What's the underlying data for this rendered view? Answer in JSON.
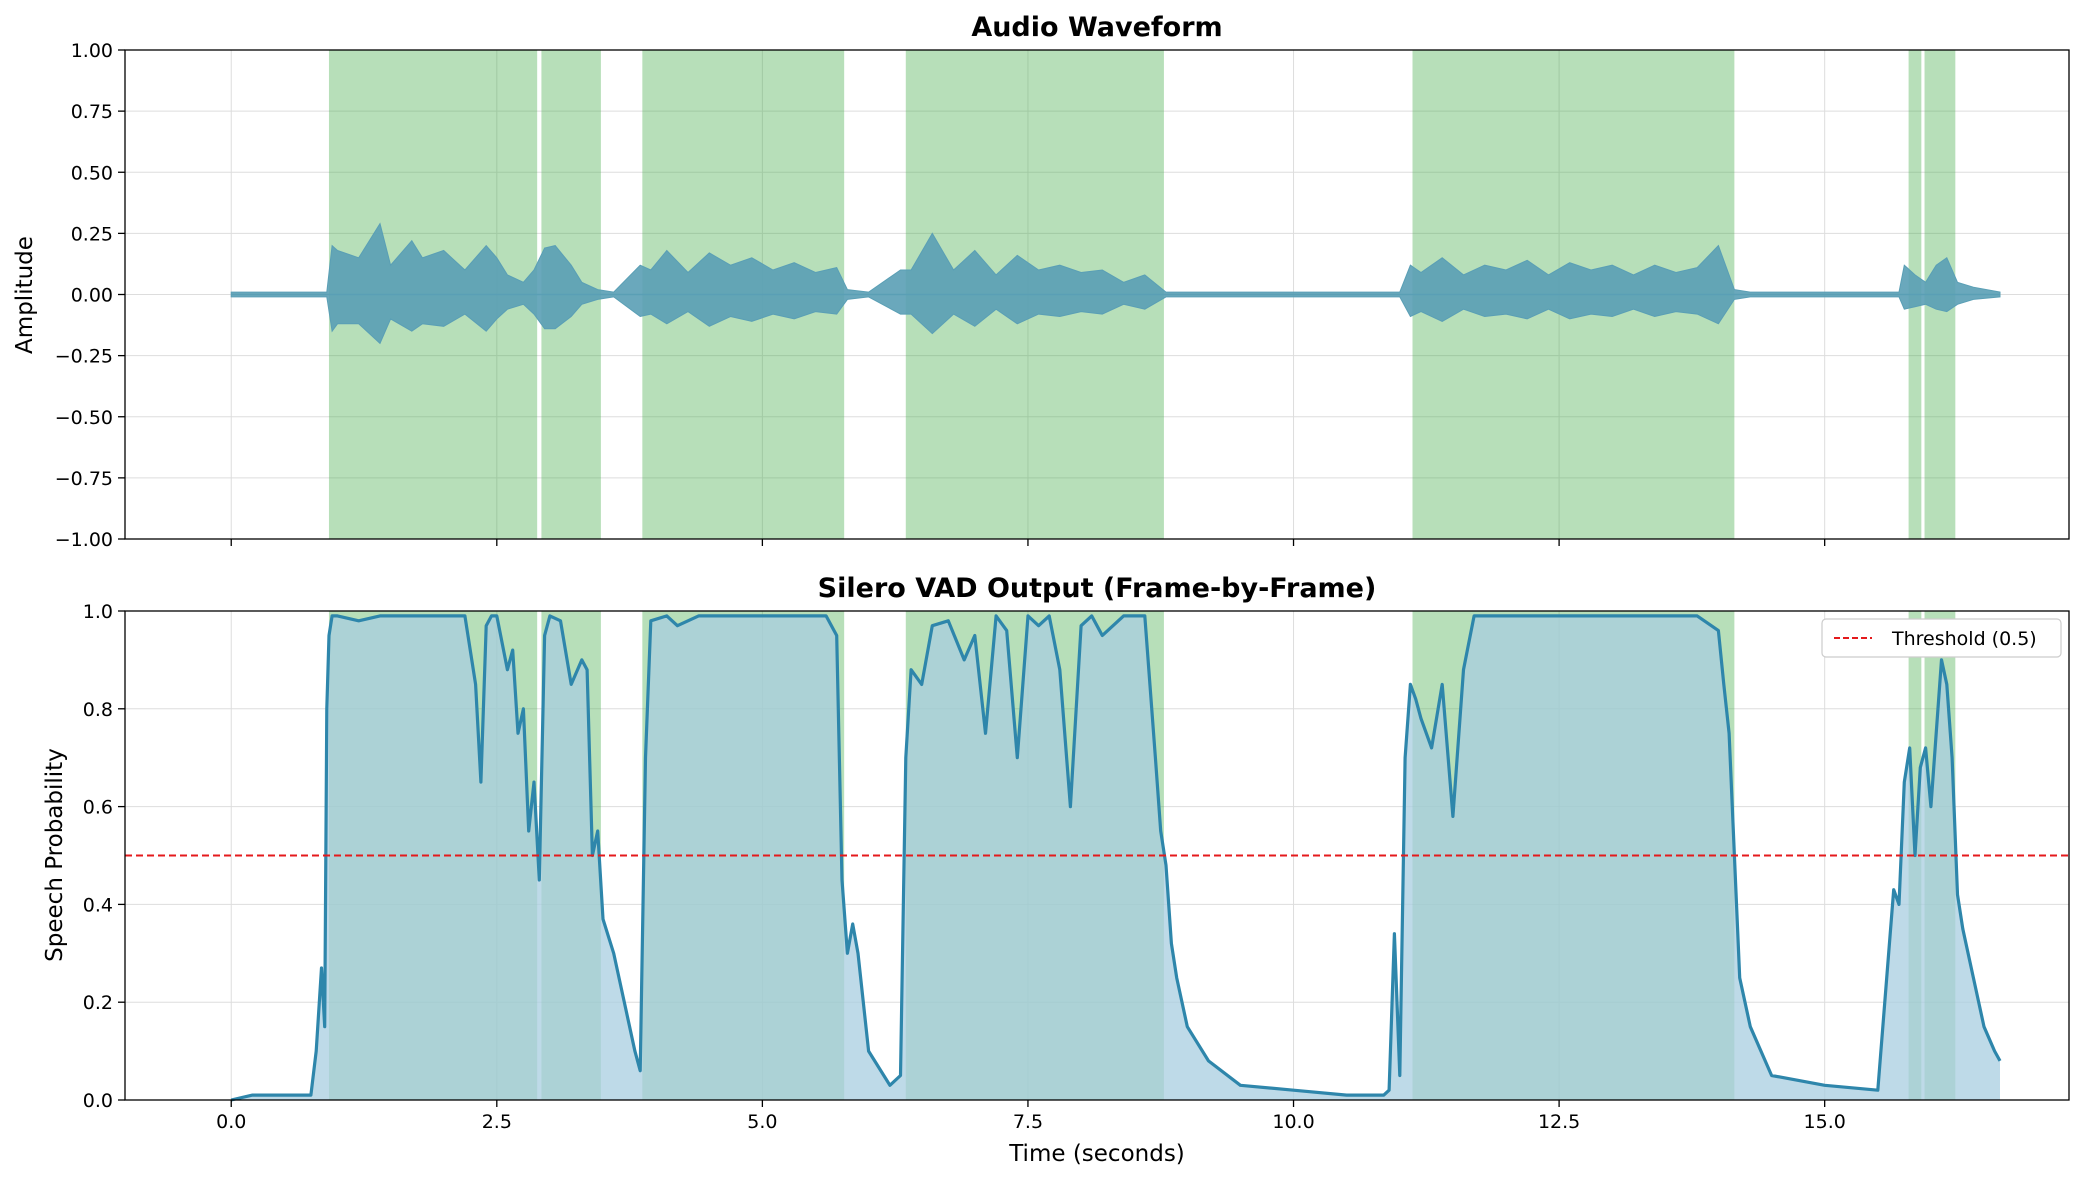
{
  "chart_data": [
    {
      "type": "line",
      "title": "Audio Waveform",
      "xlabel": "",
      "ylabel": "Amplitude",
      "xlim": [
        -1.0,
        17.3
      ],
      "ylim": [
        -1.0,
        1.0
      ],
      "xticks": [
        0.0,
        2.5,
        5.0,
        7.5,
        10.0,
        12.5,
        15.0
      ],
      "yticks": [
        "1.00",
        "0.75",
        "0.50",
        "0.25",
        "0.00",
        "−0.25",
        "−0.50",
        "−0.75",
        "−1.00"
      ],
      "ytick_values": [
        1.0,
        0.75,
        0.5,
        0.25,
        0.0,
        -0.25,
        -0.5,
        -0.75,
        -1.0
      ],
      "grid": true,
      "series": [
        {
          "kind": "waveform-envelope",
          "color": "#5a9fb5",
          "x": [
            0.0,
            0.5,
            0.9,
            0.95,
            1.0,
            1.2,
            1.4,
            1.5,
            1.7,
            1.8,
            2.0,
            2.2,
            2.4,
            2.5,
            2.6,
            2.75,
            2.85,
            2.95,
            3.05,
            3.2,
            3.3,
            3.45,
            3.6,
            3.85,
            3.95,
            4.1,
            4.3,
            4.5,
            4.7,
            4.9,
            5.1,
            5.3,
            5.5,
            5.7,
            5.8,
            6.0,
            6.3,
            6.4,
            6.6,
            6.8,
            7.0,
            7.2,
            7.4,
            7.6,
            7.8,
            8.0,
            8.2,
            8.4,
            8.6,
            8.8,
            9.0,
            10.0,
            11.0,
            11.1,
            11.2,
            11.4,
            11.6,
            11.8,
            12.0,
            12.2,
            12.4,
            12.6,
            12.8,
            13.0,
            13.2,
            13.4,
            13.6,
            13.8,
            14.0,
            14.15,
            14.3,
            15.0,
            15.7,
            15.75,
            15.85,
            15.95,
            16.05,
            16.15,
            16.25,
            16.4,
            16.65
          ],
          "upper": [
            0.01,
            0.01,
            0.01,
            0.2,
            0.18,
            0.15,
            0.29,
            0.12,
            0.22,
            0.15,
            0.18,
            0.1,
            0.2,
            0.15,
            0.08,
            0.05,
            0.1,
            0.19,
            0.2,
            0.12,
            0.05,
            0.02,
            0.01,
            0.12,
            0.1,
            0.18,
            0.09,
            0.17,
            0.12,
            0.15,
            0.1,
            0.13,
            0.09,
            0.11,
            0.02,
            0.01,
            0.1,
            0.1,
            0.25,
            0.1,
            0.18,
            0.08,
            0.16,
            0.1,
            0.12,
            0.09,
            0.1,
            0.05,
            0.08,
            0.01,
            0.01,
            0.01,
            0.01,
            0.12,
            0.09,
            0.15,
            0.08,
            0.12,
            0.1,
            0.14,
            0.08,
            0.13,
            0.1,
            0.12,
            0.08,
            0.12,
            0.09,
            0.11,
            0.2,
            0.02,
            0.01,
            0.01,
            0.01,
            0.12,
            0.08,
            0.05,
            0.12,
            0.15,
            0.05,
            0.03,
            0.01
          ],
          "lower": [
            -0.01,
            -0.01,
            -0.01,
            -0.15,
            -0.12,
            -0.12,
            -0.2,
            -0.1,
            -0.15,
            -0.12,
            -0.13,
            -0.08,
            -0.15,
            -0.1,
            -0.06,
            -0.04,
            -0.08,
            -0.14,
            -0.14,
            -0.09,
            -0.04,
            -0.02,
            -0.01,
            -0.09,
            -0.08,
            -0.12,
            -0.07,
            -0.13,
            -0.09,
            -0.11,
            -0.08,
            -0.1,
            -0.07,
            -0.08,
            -0.02,
            -0.01,
            -0.08,
            -0.08,
            -0.16,
            -0.08,
            -0.13,
            -0.06,
            -0.12,
            -0.08,
            -0.09,
            -0.07,
            -0.08,
            -0.04,
            -0.06,
            -0.01,
            -0.01,
            -0.01,
            -0.01,
            -0.09,
            -0.07,
            -0.11,
            -0.06,
            -0.09,
            -0.08,
            -0.1,
            -0.06,
            -0.1,
            -0.08,
            -0.09,
            -0.06,
            -0.09,
            -0.07,
            -0.08,
            -0.12,
            -0.02,
            -0.01,
            -0.01,
            -0.01,
            -0.06,
            -0.05,
            -0.04,
            -0.06,
            -0.07,
            -0.04,
            -0.02,
            -0.01
          ]
        }
      ],
      "speech_regions": [
        [
          0.92,
          2.88
        ],
        [
          2.92,
          3.48
        ],
        [
          3.87,
          5.77
        ],
        [
          6.35,
          8.78
        ],
        [
          11.12,
          14.15
        ],
        [
          15.79,
          15.91
        ],
        [
          15.94,
          16.23
        ]
      ],
      "region_color": "#4caf50"
    },
    {
      "type": "line",
      "title": "Silero VAD Output (Frame-by-Frame)",
      "xlabel": "Time (seconds)",
      "ylabel": "Speech Probability",
      "xlim": [
        -1.0,
        17.3
      ],
      "ylim": [
        0.0,
        1.0
      ],
      "xticks": [
        "0.0",
        "2.5",
        "5.0",
        "7.5",
        "10.0",
        "12.5",
        "15.0"
      ],
      "xtick_values": [
        0.0,
        2.5,
        5.0,
        7.5,
        10.0,
        12.5,
        15.0
      ],
      "yticks": [
        "1.0",
        "0.8",
        "0.6",
        "0.4",
        "0.2",
        "0.0"
      ],
      "ytick_values": [
        1.0,
        0.8,
        0.6,
        0.4,
        0.2,
        0.0
      ],
      "grid": true,
      "threshold": 0.5,
      "legend": {
        "position": "top-right",
        "entries": [
          "Threshold (0.5)"
        ]
      },
      "series": [
        {
          "kind": "probability",
          "color": "#2e86ab",
          "fill": "#a8cde0",
          "x": [
            0.0,
            0.2,
            0.5,
            0.75,
            0.8,
            0.85,
            0.88,
            0.9,
            0.92,
            0.95,
            1.0,
            1.2,
            1.4,
            1.6,
            1.8,
            2.0,
            2.2,
            2.3,
            2.35,
            2.4,
            2.45,
            2.5,
            2.6,
            2.65,
            2.7,
            2.75,
            2.8,
            2.85,
            2.9,
            2.95,
            3.0,
            3.1,
            3.2,
            3.3,
            3.35,
            3.4,
            3.45,
            3.5,
            3.6,
            3.7,
            3.8,
            3.85,
            3.9,
            3.95,
            4.1,
            4.2,
            4.4,
            4.6,
            4.8,
            5.0,
            5.2,
            5.4,
            5.6,
            5.7,
            5.75,
            5.8,
            5.85,
            5.9,
            6.0,
            6.2,
            6.3,
            6.35,
            6.4,
            6.5,
            6.6,
            6.75,
            6.9,
            7.0,
            7.1,
            7.2,
            7.3,
            7.4,
            7.5,
            7.6,
            7.7,
            7.8,
            7.9,
            8.0,
            8.1,
            8.2,
            8.4,
            8.6,
            8.7,
            8.75,
            8.8,
            8.85,
            8.9,
            9.0,
            9.2,
            9.5,
            10.0,
            10.5,
            10.85,
            10.9,
            10.95,
            11.0,
            11.05,
            11.1,
            11.15,
            11.2,
            11.3,
            11.4,
            11.5,
            11.6,
            11.7,
            12.0,
            12.5,
            12.8,
            13.0,
            13.2,
            13.5,
            13.8,
            14.0,
            14.05,
            14.1,
            14.15,
            14.2,
            14.3,
            14.5,
            15.0,
            15.5,
            15.65,
            15.7,
            15.75,
            15.8,
            15.85,
            15.9,
            15.95,
            16.0,
            16.05,
            16.1,
            16.15,
            16.2,
            16.25,
            16.3,
            16.4,
            16.5,
            16.6,
            16.65
          ],
          "values": [
            0.0,
            0.01,
            0.01,
            0.01,
            0.1,
            0.27,
            0.15,
            0.8,
            0.95,
            0.99,
            0.99,
            0.98,
            0.99,
            0.99,
            0.99,
            0.99,
            0.99,
            0.85,
            0.65,
            0.97,
            0.99,
            0.99,
            0.88,
            0.92,
            0.75,
            0.8,
            0.55,
            0.65,
            0.45,
            0.95,
            0.99,
            0.98,
            0.85,
            0.9,
            0.88,
            0.5,
            0.55,
            0.37,
            0.3,
            0.2,
            0.1,
            0.06,
            0.7,
            0.98,
            0.99,
            0.97,
            0.99,
            0.99,
            0.99,
            0.99,
            0.99,
            0.99,
            0.99,
            0.95,
            0.45,
            0.3,
            0.36,
            0.3,
            0.1,
            0.03,
            0.05,
            0.7,
            0.88,
            0.85,
            0.97,
            0.98,
            0.9,
            0.95,
            0.75,
            0.99,
            0.96,
            0.7,
            0.99,
            0.97,
            0.99,
            0.88,
            0.6,
            0.97,
            0.99,
            0.95,
            0.99,
            0.99,
            0.7,
            0.55,
            0.48,
            0.32,
            0.25,
            0.15,
            0.08,
            0.03,
            0.02,
            0.01,
            0.01,
            0.02,
            0.34,
            0.05,
            0.7,
            0.85,
            0.82,
            0.78,
            0.72,
            0.85,
            0.58,
            0.88,
            0.99,
            0.99,
            0.99,
            0.99,
            0.99,
            0.99,
            0.99,
            0.99,
            0.96,
            0.85,
            0.75,
            0.5,
            0.25,
            0.15,
            0.05,
            0.03,
            0.02,
            0.43,
            0.4,
            0.65,
            0.72,
            0.5,
            0.68,
            0.72,
            0.6,
            0.75,
            0.9,
            0.85,
            0.7,
            0.42,
            0.35,
            0.25,
            0.15,
            0.1,
            0.08
          ],
          "xvals_note": ""
        }
      ],
      "speech_regions": [
        [
          0.92,
          2.88
        ],
        [
          2.92,
          3.48
        ],
        [
          3.87,
          5.77
        ],
        [
          6.35,
          8.78
        ],
        [
          11.12,
          14.15
        ],
        [
          15.79,
          15.91
        ],
        [
          15.94,
          16.23
        ]
      ],
      "region_color": "#4caf50",
      "threshold_color": "#e41a1c"
    }
  ]
}
